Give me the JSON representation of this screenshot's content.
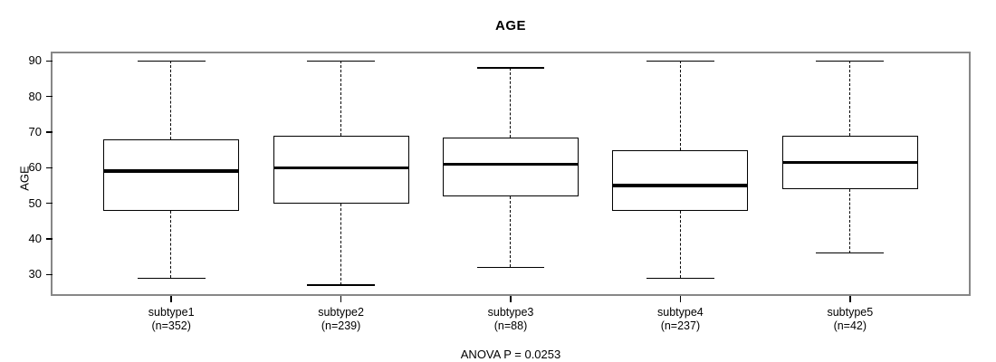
{
  "header": {
    "title": "AGE"
  },
  "chart_data": {
    "type": "boxplot",
    "title": "AGE",
    "ylabel": "AGE",
    "annotation": "ANOVA P = 0.0253",
    "yticks": [
      30,
      40,
      50,
      60,
      70,
      80,
      90
    ],
    "ylim": [
      24.5,
      92.1
    ],
    "grid": false,
    "categories": [
      {
        "label": "subtype1",
        "n_label": "(n=352)",
        "n": 352,
        "whisker_low": 29,
        "q1": 48,
        "median": 59,
        "q3": 68,
        "whisker_high": 90
      },
      {
        "label": "subtype2",
        "n_label": "(n=239)",
        "n": 239,
        "whisker_low": 27,
        "q1": 50,
        "median": 60,
        "q3": 69,
        "whisker_high": 90
      },
      {
        "label": "subtype3",
        "n_label": "(n=88)",
        "n": 88,
        "whisker_low": 32,
        "q1": 52,
        "median": 61,
        "q3": 68.5,
        "whisker_high": 88
      },
      {
        "label": "subtype4",
        "n_label": "(n=237)",
        "n": 237,
        "whisker_low": 29,
        "q1": 48,
        "median": 55,
        "q3": 65,
        "whisker_high": 90
      },
      {
        "label": "subtype5",
        "n_label": "(n=42)",
        "n": 42,
        "whisker_low": 36,
        "q1": 54,
        "median": 61.5,
        "q3": 69,
        "whisker_high": 90
      }
    ],
    "colors": {
      "plot_border": "#878787",
      "box_border": "#000000",
      "median": "#000000",
      "background": "#ffffff",
      "text": "#000000"
    }
  }
}
